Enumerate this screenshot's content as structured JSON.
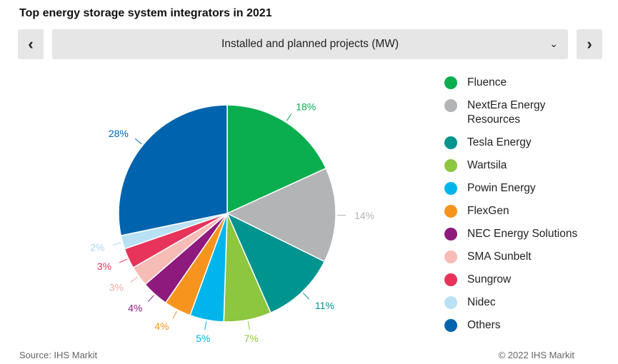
{
  "title": "Top energy storage system integrators in 2021",
  "nav": {
    "prev_icon": "chevron-left-icon",
    "next_icon": "chevron-right-icon",
    "prev": "‹",
    "next": "›",
    "selected": "Installed and planned projects (MW)",
    "dropdown_icon": "⌄"
  },
  "chart_data": {
    "type": "pie",
    "unit": "%",
    "categories": [
      "Fluence",
      "NextEra Energy Resources",
      "Tesla Energy",
      "Wartsila",
      "Powin Energy",
      "FlexGen",
      "NEC Energy Solutions",
      "SMA Sunbelt",
      "Sungrow",
      "Nidec",
      "Others"
    ],
    "values": [
      18,
      14,
      11,
      7,
      5,
      4,
      4,
      3,
      3,
      2,
      28
    ],
    "labels": [
      "18%",
      "14%",
      "11%",
      "7%",
      "5%",
      "4%",
      "4%",
      "3%",
      "3%",
      "2%",
      "28%"
    ],
    "colors": [
      "#0aae4f",
      "#b3b4b6",
      "#00948f",
      "#8dc63f",
      "#00b5ec",
      "#f7941d",
      "#8e1a7e",
      "#f8bcb6",
      "#e8335a",
      "#b9e1f4",
      "#0063ad"
    ],
    "label_colors": [
      "#0aae4f",
      "#b3b4b6",
      "#00948f",
      "#8dc63f",
      "#00b5ec",
      "#f7941d",
      "#8e1a7e",
      "#f4a9a2",
      "#e8335a",
      "#a9d9f1",
      "#0063ad"
    ],
    "legend_position": "right"
  },
  "footer": {
    "source": "Source: IHS Markit",
    "copyright": "© 2022 IHS Markit"
  }
}
